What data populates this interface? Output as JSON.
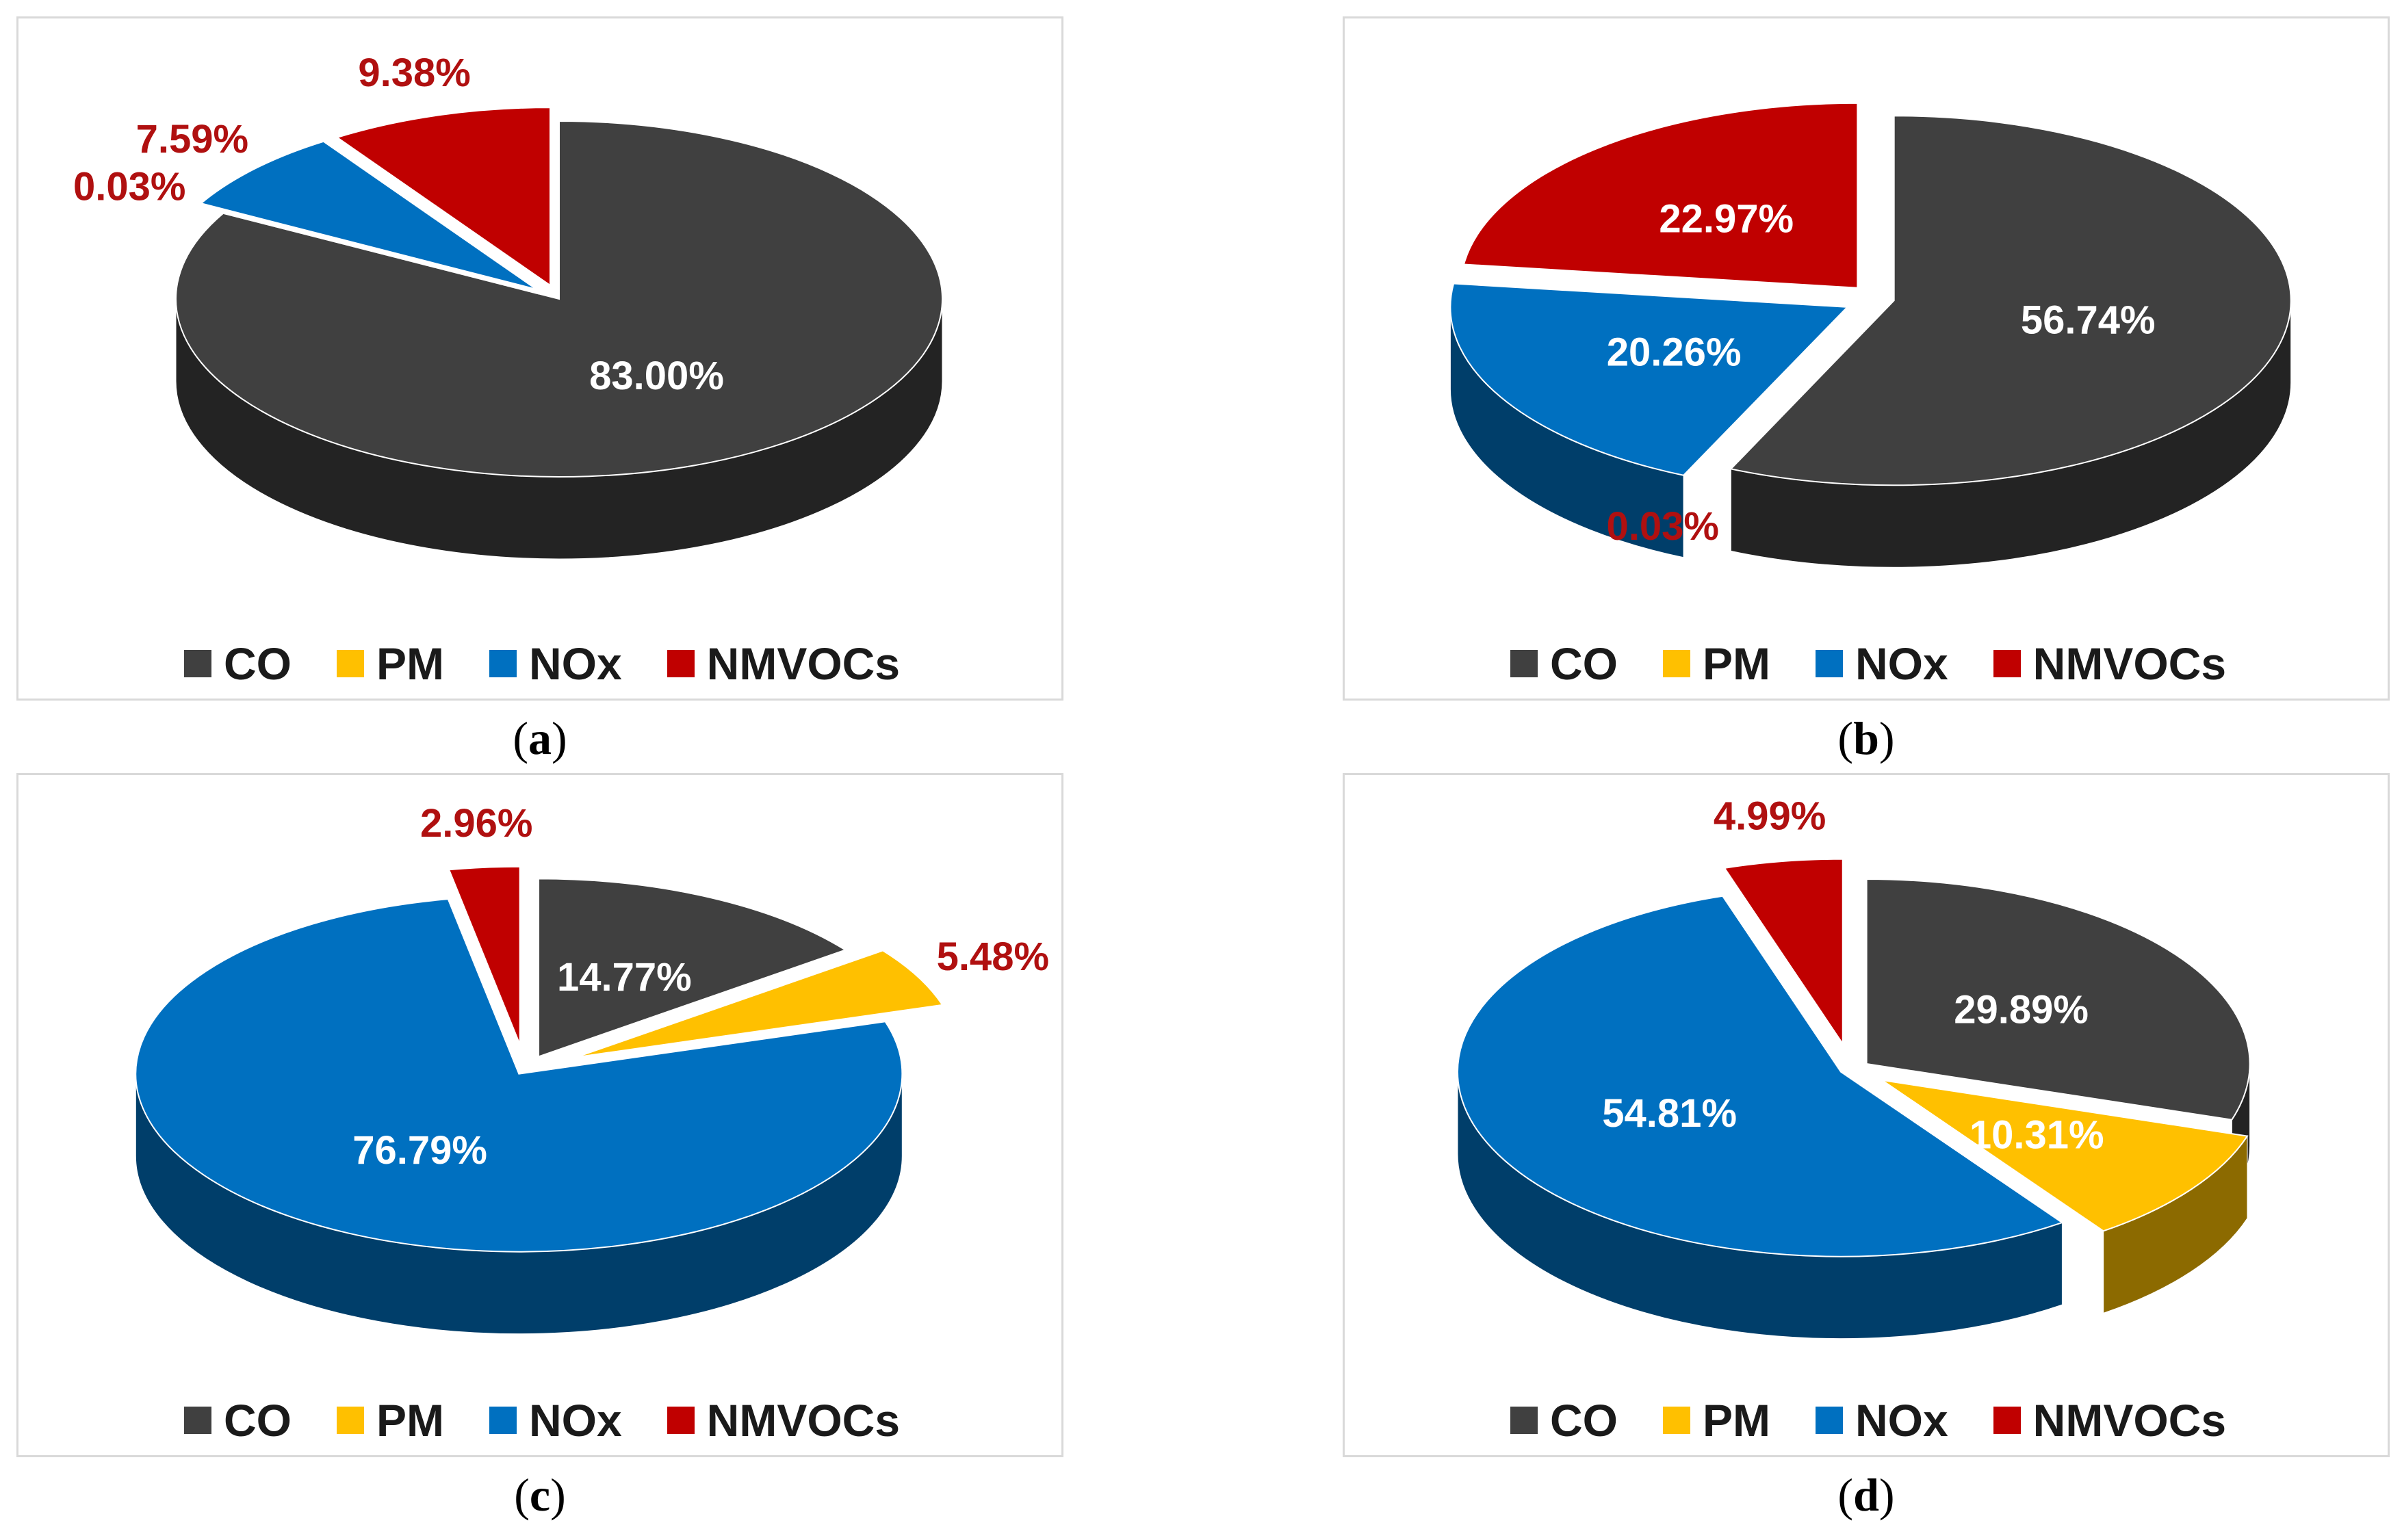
{
  "colors": {
    "CO": "#404040",
    "PM": "#ffc000",
    "NOx": "#0070c0",
    "NMVOCs": "#c00000",
    "label_dark": "#ffffff",
    "label_outside": "#b01010"
  },
  "legend": [
    "CO",
    "PM",
    "NOx",
    "NMVOCs"
  ],
  "chart_data": [
    {
      "type": "pie",
      "panel": "a",
      "categories": [
        "CO",
        "PM",
        "NOx",
        "NMVOCs"
      ],
      "values": [
        83.0,
        0.03,
        7.59,
        9.38
      ],
      "labels": [
        "83.00%",
        "0.03%",
        "7.59%",
        "9.38%"
      ],
      "legend": "bottom"
    },
    {
      "type": "pie",
      "panel": "b",
      "categories": [
        "CO",
        "PM",
        "NOx",
        "NMVOCs"
      ],
      "values": [
        56.74,
        0.03,
        20.26,
        22.97
      ],
      "labels": [
        "56.74%",
        "0.03%",
        "20.26%",
        "22.97%"
      ],
      "legend": "bottom"
    },
    {
      "type": "pie",
      "panel": "c",
      "categories": [
        "CO",
        "PM",
        "NOx",
        "NMVOCs"
      ],
      "values": [
        14.77,
        5.48,
        76.79,
        2.96
      ],
      "labels": [
        "14.77%",
        "5.48%",
        "76.79%",
        "2.96%"
      ],
      "legend": "bottom"
    },
    {
      "type": "pie",
      "panel": "d",
      "categories": [
        "CO",
        "PM",
        "NOx",
        "NMVOCs"
      ],
      "values": [
        29.89,
        10.31,
        54.81,
        4.99
      ],
      "labels": [
        "29.89%",
        "10.31%",
        "54.81%",
        "4.99%"
      ],
      "legend": "bottom"
    }
  ],
  "captions": [
    "a",
    "b",
    "c",
    "d"
  ]
}
